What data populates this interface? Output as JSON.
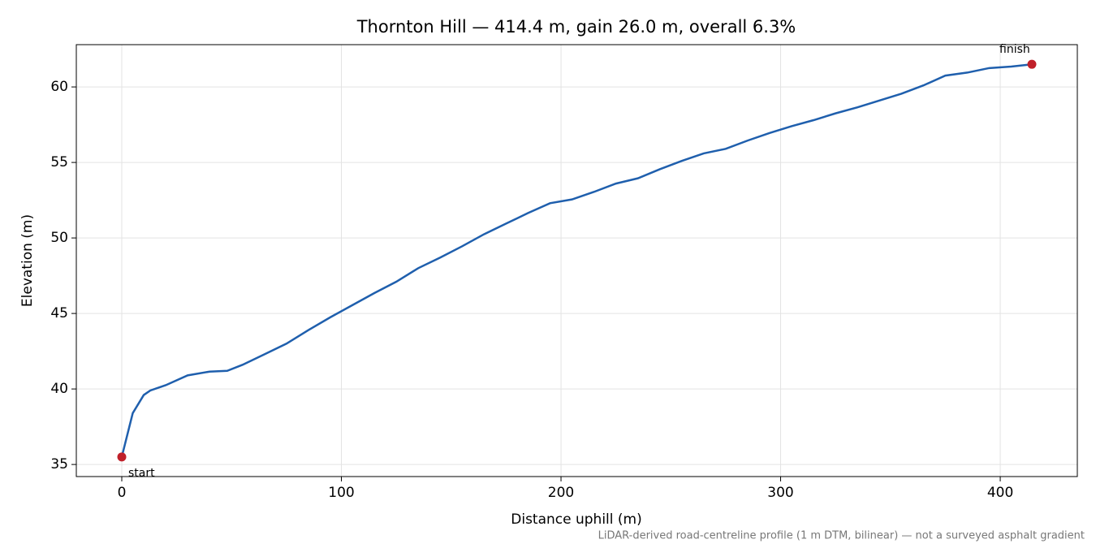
{
  "chart_data": {
    "type": "line",
    "title": "Thornton Hill — 414.4 m, gain 26.0 m, overall 6.3%",
    "x_label": "Distance uphill (m)",
    "y_label": "Elevation (m)",
    "footnote": "LiDAR-derived road-centreline profile (1 m DTM, bilinear) — not a surveyed asphalt gradient",
    "start_label": "start",
    "finish_label": "finish",
    "x": [
      0,
      5,
      10,
      13,
      20,
      30,
      40,
      48,
      55,
      65,
      75,
      85,
      95,
      105,
      115,
      125,
      135,
      145,
      155,
      165,
      175,
      185,
      195,
      205,
      215,
      225,
      235,
      245,
      255,
      265,
      275,
      285,
      295,
      305,
      315,
      325,
      335,
      345,
      355,
      365,
      375,
      385,
      395,
      405,
      414.4
    ],
    "series": [
      {
        "name": "Elevation",
        "color": "#1f5fad",
        "values": [
          35.5,
          38.4,
          39.6,
          39.9,
          40.25,
          40.9,
          41.15,
          41.2,
          41.6,
          42.3,
          43.0,
          43.9,
          44.75,
          45.55,
          46.35,
          47.1,
          48.0,
          48.7,
          49.45,
          50.25,
          50.95,
          51.65,
          52.3,
          52.55,
          53.05,
          53.6,
          53.95,
          54.55,
          55.1,
          55.6,
          55.9,
          56.45,
          56.95,
          57.4,
          57.8,
          58.25,
          58.65,
          59.1,
          59.55,
          60.1,
          60.75,
          60.95,
          61.25,
          61.35,
          61.5
        ]
      }
    ],
    "endpoint_color": "#c0202a",
    "xlim": [
      -20.7,
      435.1
    ],
    "ylim": [
      34.2,
      62.8
    ],
    "xticks": [
      0,
      100,
      200,
      300,
      400
    ],
    "yticks": [
      35,
      40,
      45,
      50,
      55,
      60
    ],
    "grid": true
  }
}
